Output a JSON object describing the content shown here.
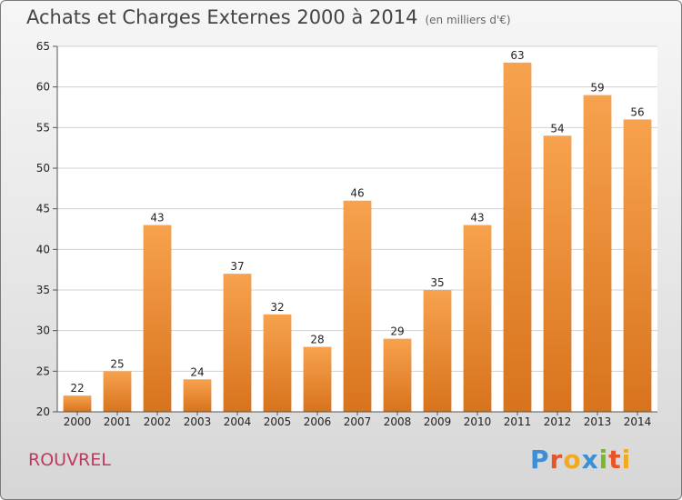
{
  "header": {
    "title": "Achats et Charges Externes 2000 à 2014",
    "subtitle": "(en milliers d'€)"
  },
  "footer": {
    "commune": "ROUVREL",
    "logo_text": "Proxiti",
    "logo_colors": [
      "#3a8fd6",
      "#e8542a",
      "#f2a91d",
      "#3a8fd6",
      "#7ab829",
      "#e8542a",
      "#f2a91d"
    ]
  },
  "chart_data": {
    "type": "bar",
    "title": "Achats et Charges Externes 2000 à 2014",
    "subtitle": "(en milliers d'€)",
    "xlabel": "",
    "ylabel": "",
    "categories": [
      "2000",
      "2001",
      "2002",
      "2003",
      "2004",
      "2005",
      "2006",
      "2007",
      "2008",
      "2009",
      "2010",
      "2011",
      "2012",
      "2013",
      "2014"
    ],
    "values": [
      22,
      25,
      43,
      24,
      37,
      32,
      28,
      46,
      29,
      35,
      43,
      63,
      54,
      59,
      56
    ],
    "ylim": [
      20,
      65
    ],
    "yticks": [
      20,
      25,
      30,
      35,
      40,
      45,
      50,
      55,
      60,
      65
    ],
    "grid": true,
    "bar_color_top": "#f7a24e",
    "bar_color_bottom": "#d8731d"
  }
}
